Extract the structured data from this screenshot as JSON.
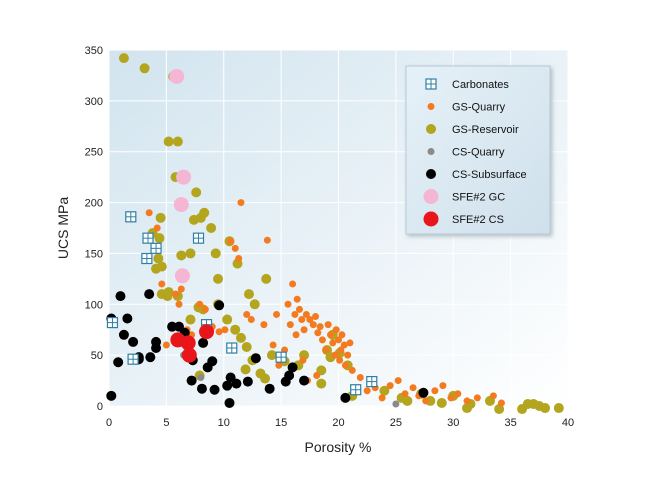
{
  "chart_data": {
    "type": "scatter",
    "title": "",
    "xlabel": "Porosity %",
    "ylabel": "UCS MPa",
    "xlim": [
      0,
      40
    ],
    "ylim": [
      0,
      350
    ],
    "xticks": [
      "0",
      "5",
      "10",
      "15",
      "20",
      "25",
      "30",
      "35",
      "40"
    ],
    "yticks": [
      "0",
      "50",
      "100",
      "150",
      "200",
      "250",
      "300",
      "350"
    ],
    "grid": true,
    "legend_position": "top-right",
    "series": [
      {
        "name": "Carbonates",
        "marker": "square-grid",
        "color": "#2e7fa6",
        "points": [
          [
            0.3,
            82
          ],
          [
            1.9,
            186
          ],
          [
            2.1,
            46
          ],
          [
            3.3,
            145
          ],
          [
            3.4,
            165
          ],
          [
            4.1,
            155
          ],
          [
            7.8,
            165
          ],
          [
            8.5,
            80
          ],
          [
            10.7,
            57
          ],
          [
            15.0,
            48
          ],
          [
            21.5,
            16
          ],
          [
            22.9,
            24
          ]
        ]
      },
      {
        "name": "GS-Quarry",
        "marker": "circle-small",
        "color": "#f47a20",
        "points": [
          [
            3.5,
            190
          ],
          [
            4.2,
            175
          ],
          [
            5.8,
            110
          ],
          [
            6.1,
            100
          ],
          [
            6.3,
            115
          ],
          [
            6.8,
            75
          ],
          [
            7.2,
            70
          ],
          [
            7.9,
            100
          ],
          [
            8.4,
            95
          ],
          [
            9.0,
            78
          ],
          [
            9.6,
            73
          ],
          [
            10.1,
            75
          ],
          [
            10.6,
            162
          ],
          [
            11.5,
            200
          ],
          [
            11.3,
            145
          ],
          [
            11.0,
            155
          ],
          [
            12.0,
            90
          ],
          [
            12.4,
            85
          ],
          [
            13.5,
            80
          ],
          [
            13.8,
            163
          ],
          [
            14.3,
            60
          ],
          [
            14.8,
            40
          ],
          [
            14.6,
            90
          ],
          [
            15.3,
            55
          ],
          [
            15.6,
            100
          ],
          [
            15.8,
            80
          ],
          [
            16.0,
            120
          ],
          [
            16.2,
            90
          ],
          [
            16.4,
            105
          ],
          [
            16.3,
            70
          ],
          [
            16.6,
            95
          ],
          [
            16.8,
            85
          ],
          [
            17.0,
            75
          ],
          [
            17.2,
            90
          ],
          [
            17.5,
            85
          ],
          [
            17.8,
            80
          ],
          [
            18.0,
            88
          ],
          [
            18.2,
            72
          ],
          [
            18.4,
            78
          ],
          [
            18.6,
            65
          ],
          [
            18.9,
            55
          ],
          [
            19.1,
            80
          ],
          [
            19.3,
            70
          ],
          [
            19.5,
            62
          ],
          [
            19.7,
            50
          ],
          [
            19.8,
            75
          ],
          [
            20.0,
            65
          ],
          [
            20.1,
            45
          ],
          [
            20.2,
            55
          ],
          [
            20.3,
            70
          ],
          [
            20.5,
            60
          ],
          [
            20.6,
            40
          ],
          [
            20.8,
            50
          ],
          [
            21.0,
            62
          ],
          [
            21.2,
            35
          ],
          [
            16.9,
            45
          ],
          [
            17.3,
            25
          ],
          [
            18.1,
            30
          ],
          [
            21.9,
            28
          ],
          [
            22.5,
            15
          ],
          [
            23.2,
            18
          ],
          [
            23.8,
            8
          ],
          [
            24.5,
            20
          ],
          [
            25.2,
            25
          ],
          [
            25.8,
            12
          ],
          [
            26.5,
            18
          ],
          [
            27.0,
            10
          ],
          [
            27.6,
            5
          ],
          [
            28.4,
            15
          ],
          [
            29.1,
            20
          ],
          [
            29.8,
            8
          ],
          [
            30.4,
            12
          ],
          [
            31.2,
            5
          ],
          [
            32.1,
            8
          ],
          [
            33.5,
            10
          ],
          [
            34.2,
            3
          ],
          [
            5.0,
            60
          ],
          [
            4.6,
            120
          ]
        ]
      },
      {
        "name": "GS-Reservoir",
        "marker": "circle",
        "color": "#b3a51e",
        "points": [
          [
            1.3,
            342
          ],
          [
            3.1,
            332
          ],
          [
            5.2,
            260
          ],
          [
            5.6,
            324
          ],
          [
            5.8,
            225
          ],
          [
            6.0,
            260
          ],
          [
            6.2,
            200
          ],
          [
            4.5,
            185
          ],
          [
            4.4,
            165
          ],
          [
            3.8,
            170
          ],
          [
            4.3,
            145
          ],
          [
            4.1,
            135
          ],
          [
            4.6,
            137
          ],
          [
            5.2,
            112
          ],
          [
            6.3,
            148
          ],
          [
            7.1,
            150
          ],
          [
            7.6,
            210
          ],
          [
            7.4,
            183
          ],
          [
            8.0,
            185
          ],
          [
            8.3,
            190
          ],
          [
            8.9,
            175
          ],
          [
            9.3,
            150
          ],
          [
            9.5,
            125
          ],
          [
            10.5,
            162
          ],
          [
            11.2,
            140
          ],
          [
            12.2,
            110
          ],
          [
            12.7,
            100
          ],
          [
            13.7,
            125
          ],
          [
            4.6,
            110
          ],
          [
            5.1,
            108
          ],
          [
            6.0,
            108
          ],
          [
            7.1,
            85
          ],
          [
            7.8,
            97
          ],
          [
            8.2,
            95
          ],
          [
            9.5,
            100
          ],
          [
            10.3,
            85
          ],
          [
            11.0,
            75
          ],
          [
            11.5,
            67
          ],
          [
            12.0,
            58
          ],
          [
            12.5,
            45
          ],
          [
            13.2,
            32
          ],
          [
            11.9,
            36
          ],
          [
            16.5,
            40
          ],
          [
            17.0,
            50
          ],
          [
            18.5,
            35
          ],
          [
            19.0,
            55
          ],
          [
            19.5,
            70
          ],
          [
            20.1,
            52
          ],
          [
            20.8,
            40
          ],
          [
            24.0,
            15
          ],
          [
            25.5,
            8
          ],
          [
            26.0,
            5
          ],
          [
            27.2,
            12
          ],
          [
            28.0,
            5
          ],
          [
            29.0,
            3
          ],
          [
            30.0,
            10
          ],
          [
            31.2,
            -2
          ],
          [
            31.5,
            2
          ],
          [
            33.2,
            5
          ],
          [
            34.0,
            -3
          ],
          [
            36.0,
            -3
          ],
          [
            36.5,
            2
          ],
          [
            37.0,
            2
          ],
          [
            37.5,
            0
          ],
          [
            38.0,
            -2
          ],
          [
            39.2,
            -2
          ],
          [
            7.9,
            30
          ],
          [
            13.6,
            27
          ],
          [
            18.5,
            22
          ],
          [
            21.2,
            10
          ],
          [
            14.2,
            50
          ],
          [
            15.3,
            44
          ],
          [
            19.3,
            48
          ]
        ]
      },
      {
        "name": "CS-Quarry",
        "marker": "circle-small",
        "color": "#8a8a8a",
        "points": [
          [
            6.5,
            50
          ],
          [
            8.0,
            28
          ],
          [
            25.0,
            2
          ]
        ]
      },
      {
        "name": "CS-Subsurface",
        "marker": "circle",
        "color": "#000000",
        "points": [
          [
            0.2,
            10
          ],
          [
            0.2,
            86
          ],
          [
            0.8,
            43
          ],
          [
            1.0,
            108
          ],
          [
            1.3,
            70
          ],
          [
            1.6,
            86
          ],
          [
            2.1,
            63
          ],
          [
            2.6,
            46
          ],
          [
            2.6,
            48
          ],
          [
            3.5,
            110
          ],
          [
            3.6,
            48
          ],
          [
            4.1,
            63
          ],
          [
            4.1,
            57
          ],
          [
            5.5,
            78
          ],
          [
            5.8,
            65
          ],
          [
            6.1,
            78
          ],
          [
            6.4,
            68
          ],
          [
            6.6,
            72
          ],
          [
            7.0,
            63
          ],
          [
            7.3,
            45
          ],
          [
            7.2,
            25
          ],
          [
            8.1,
            17
          ],
          [
            8.2,
            62
          ],
          [
            8.6,
            38
          ],
          [
            9.0,
            44
          ],
          [
            9.2,
            16
          ],
          [
            9.6,
            99
          ],
          [
            10.3,
            20
          ],
          [
            10.6,
            28
          ],
          [
            10.5,
            3
          ],
          [
            11.1,
            22
          ],
          [
            12.1,
            24
          ],
          [
            12.8,
            47
          ],
          [
            14.0,
            17
          ],
          [
            15.4,
            24
          ],
          [
            15.7,
            30
          ],
          [
            16.0,
            38
          ],
          [
            17.0,
            25
          ],
          [
            20.6,
            8
          ],
          [
            27.4,
            13
          ]
        ]
      },
      {
        "name": "SFE#2 GC",
        "marker": "circle-large",
        "color": "#f4b6d2",
        "points": [
          [
            5.9,
            324
          ],
          [
            6.5,
            225
          ],
          [
            6.3,
            198
          ],
          [
            6.4,
            128
          ]
        ]
      },
      {
        "name": "SFE#2 CS",
        "marker": "circle-large",
        "color": "#e8151b",
        "points": [
          [
            6.0,
            65
          ],
          [
            6.9,
            62
          ],
          [
            7.0,
            50
          ],
          [
            8.5,
            73
          ]
        ]
      }
    ]
  }
}
